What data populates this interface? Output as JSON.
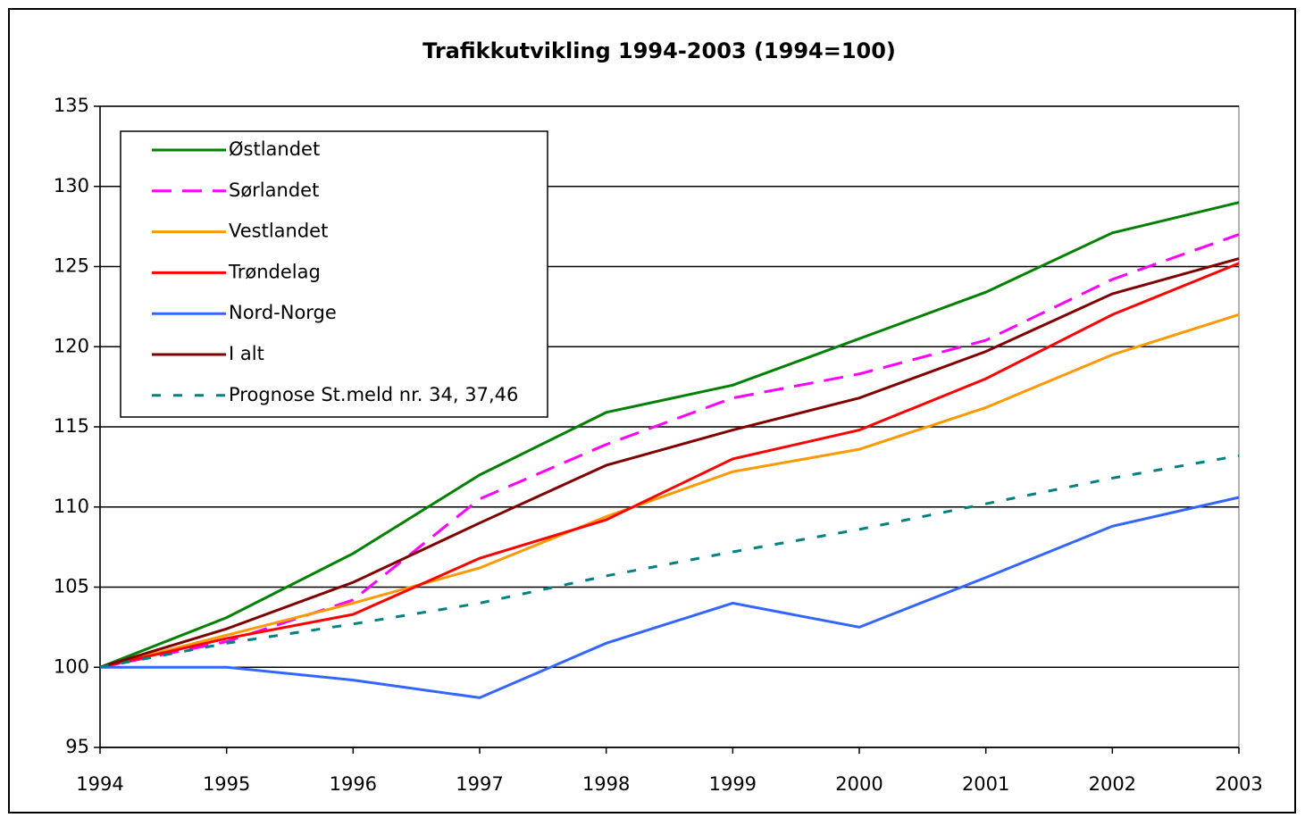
{
  "chart_data": {
    "type": "line",
    "title": "Trafikkutvikling 1994-2003 (1994=100)",
    "categories": [
      "1994",
      "1995",
      "1996",
      "1997",
      "1998",
      "1999",
      "2000",
      "2001",
      "2002",
      "2003"
    ],
    "ylim": [
      95,
      135
    ],
    "yticks": [
      95,
      100,
      105,
      110,
      115,
      120,
      125,
      130,
      135
    ],
    "grid": true,
    "legend": "upper left",
    "series": [
      {
        "name": "Østlandet",
        "color": "#008000",
        "dash": "solid",
        "values": [
          100,
          103.1,
          107.1,
          112.0,
          115.9,
          117.6,
          120.5,
          123.4,
          127.1,
          129.0
        ]
      },
      {
        "name": "Sørlandet",
        "color": "#ff00ff",
        "dash": "dashed",
        "values": [
          100,
          101.6,
          104.2,
          110.5,
          113.9,
          116.8,
          118.3,
          120.4,
          124.2,
          127.0
        ]
      },
      {
        "name": "Vestlandet",
        "color": "#ff9900",
        "dash": "solid",
        "values": [
          100,
          102.0,
          104.0,
          106.2,
          109.4,
          112.2,
          113.6,
          116.2,
          119.5,
          122.0
        ]
      },
      {
        "name": "Trøndelag",
        "color": "#ff0000",
        "dash": "solid",
        "values": [
          100,
          101.8,
          103.3,
          106.8,
          109.2,
          113.0,
          114.8,
          118.0,
          122.0,
          125.2
        ]
      },
      {
        "name": "Nord-Norge",
        "color": "#3366ff",
        "dash": "solid",
        "values": [
          100,
          100.0,
          99.2,
          98.1,
          101.5,
          104.0,
          102.5,
          105.6,
          108.8,
          110.6
        ]
      },
      {
        "name": "I alt",
        "color": "#800000",
        "dash": "solid",
        "values": [
          100,
          102.4,
          105.3,
          109.0,
          112.6,
          114.8,
          116.8,
          119.7,
          123.3,
          125.5
        ]
      },
      {
        "name": "Prognose St.meld nr. 34, 37,46",
        "color": "#008080",
        "dash": "dotted",
        "values": [
          100,
          101.5,
          102.7,
          104.0,
          105.7,
          107.2,
          108.6,
          110.2,
          111.8,
          113.2
        ]
      }
    ]
  }
}
